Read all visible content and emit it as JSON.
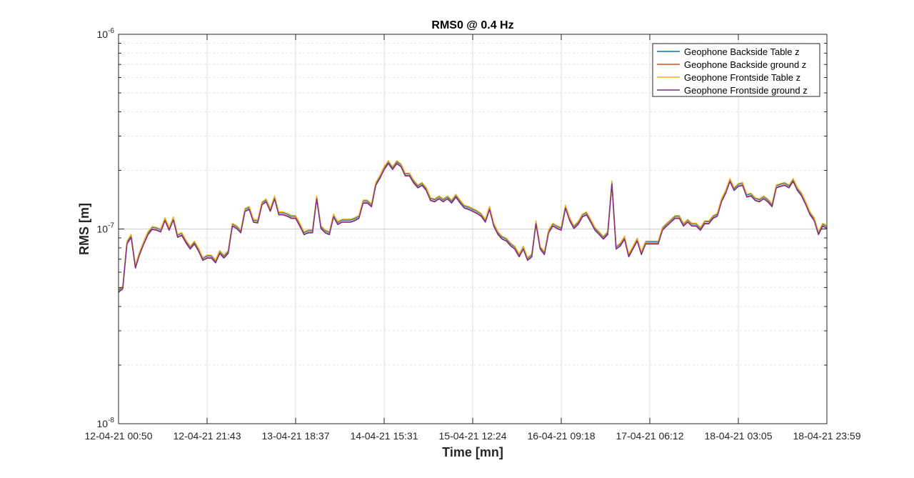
{
  "chart_data": {
    "type": "line",
    "title": "RMS0 @ 0.4 Hz",
    "xlabel": "Time [mn]",
    "ylabel": "RMS [m]",
    "yscale": "log",
    "ylim": [
      1e-08,
      1e-06
    ],
    "grid": true,
    "legend_position": "top-right",
    "x_tick_labels": [
      "12-04-21 00:50",
      "12-04-21 21:43",
      "13-04-21 18:37",
      "14-04-21 15:31",
      "15-04-21 12:24",
      "16-04-21 09:18",
      "17-04-21 06:12",
      "18-04-21 03:05",
      "18-04-21 23:59"
    ],
    "y_tick_labels": [
      {
        "value": 1e-08,
        "base": "10",
        "exp": "-8"
      },
      {
        "value": 1e-07,
        "base": "10",
        "exp": "-7"
      },
      {
        "value": 1e-06,
        "base": "10",
        "exp": "-6"
      }
    ],
    "x_range": [
      0,
      168
    ],
    "x_unit": "hours since 12-04-21 00:50",
    "series": [
      {
        "name": "Geophone Backside Table z",
        "color": "#0072BD",
        "offset": 0.01
      },
      {
        "name": "Geophone Backside ground z",
        "color": "#D95319",
        "offset": -0.01
      },
      {
        "name": "Geophone Frontside Table z",
        "color": "#EDB120",
        "offset": 0.02
      },
      {
        "name": "Geophone Frontside ground z",
        "color": "#7E2F8E",
        "offset": -0.015
      }
    ],
    "base_values_1e7": [
      0.48,
      0.5,
      0.85,
      0.92,
      0.64,
      0.75,
      0.85,
      0.95,
      1.01,
      1.0,
      0.98,
      1.12,
      1.0,
      1.13,
      0.92,
      0.94,
      0.86,
      0.8,
      0.85,
      0.78,
      0.7,
      0.72,
      0.72,
      0.68,
      0.76,
      0.72,
      0.76,
      1.05,
      1.02,
      0.97,
      1.25,
      1.28,
      1.1,
      1.09,
      1.35,
      1.4,
      1.25,
      1.45,
      1.2,
      1.2,
      1.18,
      1.15,
      1.15,
      1.05,
      0.95,
      0.97,
      0.97,
      1.45,
      1.02,
      0.97,
      0.95,
      1.17,
      1.07,
      1.1,
      1.1,
      1.1,
      1.12,
      1.15,
      1.38,
      1.38,
      1.32,
      1.7,
      1.85,
      2.05,
      2.2,
      2.05,
      2.2,
      2.12,
      1.9,
      1.9,
      1.75,
      1.65,
      1.7,
      1.6,
      1.42,
      1.4,
      1.45,
      1.4,
      1.45,
      1.38,
      1.48,
      1.38,
      1.3,
      1.28,
      1.25,
      1.22,
      1.18,
      1.1,
      1.28,
      1.05,
      0.95,
      0.9,
      0.88,
      0.83,
      0.8,
      0.73,
      0.8,
      0.7,
      0.73,
      1.08,
      0.8,
      0.75,
      0.97,
      1.05,
      1.02,
      1.0,
      1.3,
      1.12,
      1.02,
      1.07,
      1.17,
      1.2,
      1.1,
      1.0,
      0.95,
      0.9,
      0.95,
      1.73,
      0.8,
      0.83,
      0.9,
      0.73,
      0.8,
      0.88,
      0.75,
      0.85,
      0.85,
      0.85,
      0.85,
      1.0,
      1.05,
      1.1,
      1.15,
      1.15,
      1.05,
      1.1,
      1.05,
      1.05,
      1.0,
      1.08,
      1.08,
      1.15,
      1.18,
      1.4,
      1.55,
      1.78,
      1.6,
      1.68,
      1.7,
      1.48,
      1.5,
      1.42,
      1.4,
      1.45,
      1.4,
      1.32,
      1.65,
      1.68,
      1.7,
      1.65,
      1.78,
      1.6,
      1.5,
      1.35,
      1.2,
      1.12,
      0.95,
      1.05,
      1.02
    ]
  }
}
